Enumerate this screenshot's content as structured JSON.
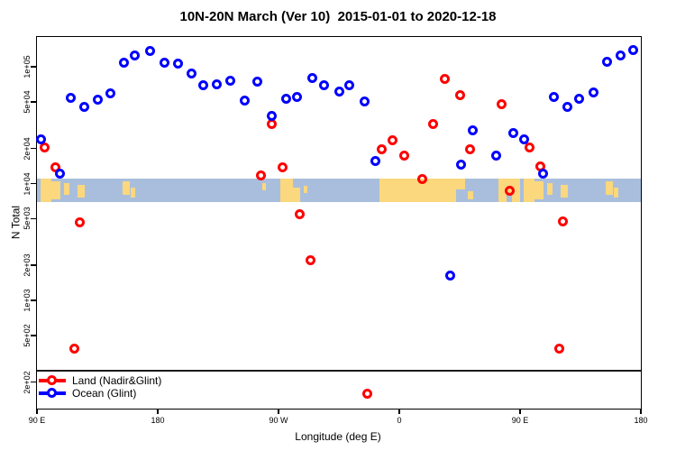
{
  "title": "10N-20N March (Ver 10)  2015-01-01 to 2020-12-18",
  "legend": {
    "items": [
      {
        "label": "Land (Nadir&Glint)",
        "color": "#ff0000"
      },
      {
        "label": "Ocean (Glint)",
        "color": "#0000ff"
      }
    ]
  },
  "map_strip": {
    "ocean_color": "#a9bedc",
    "land_color": "#fbd77d",
    "value_band": [
      6700,
      11000
    ],
    "patches": [
      {
        "x": 0.006,
        "w": 0.018,
        "t": 0.0,
        "h": 1.0
      },
      {
        "x": 0.024,
        "w": 0.015,
        "t": 0.1,
        "h": 0.8
      },
      {
        "x": 0.045,
        "w": 0.009,
        "t": 0.2,
        "h": 0.5
      },
      {
        "x": 0.067,
        "w": 0.012,
        "t": 0.25,
        "h": 0.55
      },
      {
        "x": 0.142,
        "w": 0.012,
        "t": 0.1,
        "h": 0.6
      },
      {
        "x": 0.155,
        "w": 0.007,
        "t": 0.4,
        "h": 0.4
      },
      {
        "x": 0.373,
        "w": 0.006,
        "t": 0.2,
        "h": 0.3
      },
      {
        "x": 0.403,
        "w": 0.021,
        "t": 0.0,
        "h": 1.0
      },
      {
        "x": 0.424,
        "w": 0.012,
        "t": 0.4,
        "h": 0.6
      },
      {
        "x": 0.442,
        "w": 0.006,
        "t": 0.3,
        "h": 0.3
      },
      {
        "x": 0.567,
        "w": 0.033,
        "t": 0.0,
        "h": 1.0
      },
      {
        "x": 0.6,
        "w": 0.094,
        "t": 0.0,
        "h": 1.0
      },
      {
        "x": 0.694,
        "w": 0.015,
        "t": 0.0,
        "h": 0.45
      },
      {
        "x": 0.713,
        "w": 0.009,
        "t": 0.55,
        "h": 0.35
      },
      {
        "x": 0.764,
        "w": 0.036,
        "t": 0.0,
        "h": 0.7
      },
      {
        "x": 0.764,
        "w": 0.013,
        "t": 0.7,
        "h": 0.3
      },
      {
        "x": 0.787,
        "w": 0.013,
        "t": 0.7,
        "h": 0.3
      },
      {
        "x": 0.806,
        "w": 0.018,
        "t": 0.0,
        "h": 1.0
      },
      {
        "x": 0.824,
        "w": 0.015,
        "t": 0.1,
        "h": 0.8
      },
      {
        "x": 0.845,
        "w": 0.009,
        "t": 0.2,
        "h": 0.5
      },
      {
        "x": 0.867,
        "w": 0.012,
        "t": 0.25,
        "h": 0.55
      },
      {
        "x": 0.942,
        "w": 0.012,
        "t": 0.1,
        "h": 0.6
      },
      {
        "x": 0.955,
        "w": 0.007,
        "t": 0.4,
        "h": 0.4
      }
    ]
  },
  "chart_data": {
    "type": "scatter",
    "title": "10N-20N March (Ver 10)  2015-01-01 to 2020-12-18",
    "xlabel": "Longitude (deg E)",
    "ylabel": "N Total",
    "x_axis": {
      "range": [
        90,
        540
      ],
      "ticks": [
        90,
        180,
        270,
        360,
        450,
        540
      ],
      "tick_labels": [
        "90 E",
        "180",
        "90 W",
        "0",
        "90 E",
        "180"
      ],
      "note": "longitude increases eastward from 90E and wraps: 90E,180,90W,0,90E,180"
    },
    "y_axis": {
      "scale": "log",
      "range": [
        118,
        187000
      ],
      "ticks": [
        100000,
        50000,
        20000,
        10000,
        5000,
        2000,
        1000,
        500,
        200
      ],
      "tick_labels": [
        "1e+05",
        "5e+04",
        "2e+04",
        "1e+04",
        "5e+03",
        "2e+03",
        "1e+03",
        "5e+02",
        "2e+02"
      ]
    },
    "threshold_line_value": 250,
    "series": [
      {
        "name": "Land (Nadir&Glint)",
        "color": "#ff0000",
        "points": [
          [
            96,
            20200
          ],
          [
            104,
            13800
          ],
          [
            122,
            4640
          ],
          [
            118,
            383
          ],
          [
            257,
            11800
          ],
          [
            265,
            32400
          ],
          [
            273,
            13700
          ],
          [
            286,
            5450
          ],
          [
            294,
            2210
          ],
          [
            336,
            158
          ],
          [
            347,
            19500
          ],
          [
            355,
            23400
          ],
          [
            364,
            17300
          ],
          [
            377,
            11000
          ],
          [
            385,
            32600
          ],
          [
            394,
            78500
          ],
          [
            405,
            57500
          ],
          [
            413,
            19500
          ],
          [
            436,
            48000
          ],
          [
            442,
            8750
          ],
          [
            457,
            20300
          ],
          [
            465,
            13900
          ],
          [
            482,
            4700
          ],
          [
            479,
            383
          ]
        ]
      },
      {
        "name": "Ocean (Glint)",
        "color": "#0000ff",
        "points": [
          [
            93,
            23700
          ],
          [
            107,
            12100
          ],
          [
            115,
            53700
          ],
          [
            125,
            45700
          ],
          [
            135,
            52700
          ],
          [
            145,
            59700
          ],
          [
            155,
            109000
          ],
          [
            163,
            124000
          ],
          [
            174,
            136000
          ],
          [
            185,
            109000
          ],
          [
            195,
            107000
          ],
          [
            205,
            88000
          ],
          [
            214,
            70000
          ],
          [
            224,
            71000
          ],
          [
            234,
            76000
          ],
          [
            245,
            51000
          ],
          [
            254,
            74000
          ],
          [
            265,
            38000
          ],
          [
            276,
            53000
          ],
          [
            284,
            55000
          ],
          [
            295,
            80000
          ],
          [
            304,
            69000
          ],
          [
            315,
            61500
          ],
          [
            323,
            70000
          ],
          [
            334,
            50000
          ],
          [
            342,
            15500
          ],
          [
            398,
            1630
          ],
          [
            406,
            14400
          ],
          [
            415,
            28500
          ],
          [
            432,
            17500
          ],
          [
            445,
            27200
          ],
          [
            453,
            23700
          ],
          [
            467,
            12100
          ],
          [
            475,
            55000
          ],
          [
            485,
            45700
          ],
          [
            494,
            53000
          ],
          [
            505,
            60400
          ],
          [
            515,
            111000
          ],
          [
            525,
            125000
          ],
          [
            534,
            140000
          ]
        ]
      }
    ]
  }
}
